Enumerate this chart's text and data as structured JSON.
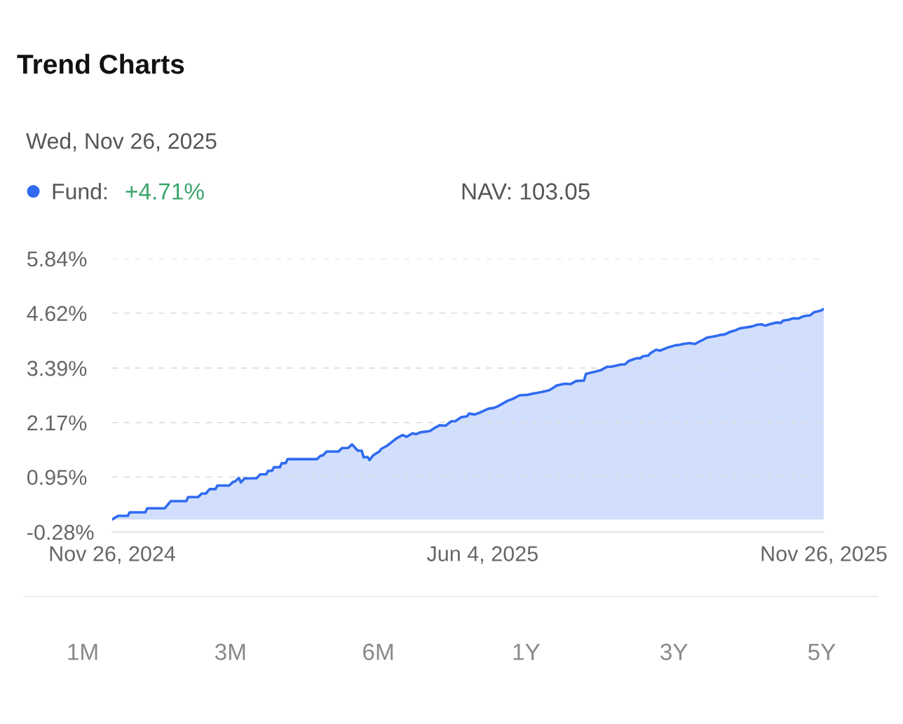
{
  "chart_data": {
    "type": "area",
    "title": "Trend Charts",
    "subtitle": "Wed, Nov 26, 2025",
    "series": [
      {
        "name": "Fund:",
        "color": "#2f6bf0",
        "x": [
          "2024-11-26",
          "2024-11-29",
          "2024-12-04",
          "2024-12-05",
          "2024-12-13",
          "2024-12-14",
          "2024-12-23",
          "2024-12-26",
          "2025-01-03",
          "2025-01-04",
          "2025-01-09",
          "2025-01-11",
          "2025-01-13",
          "2025-01-15",
          "2025-01-18",
          "2025-01-19",
          "2025-01-25",
          "2025-01-27",
          "2025-01-28",
          "2025-01-30",
          "2025-01-31",
          "2025-02-02",
          "2025-02-08",
          "2025-02-10",
          "2025-02-13",
          "2025-02-14",
          "2025-02-16",
          "2025-02-17",
          "2025-02-20",
          "2025-02-21",
          "2025-02-23",
          "2025-02-24",
          "2025-03-11",
          "2025-03-13",
          "2025-03-14",
          "2025-03-16",
          "2025-03-22",
          "2025-03-24",
          "2025-03-27",
          "2025-03-29",
          "2025-04-01",
          "2025-04-03",
          "2025-04-04",
          "2025-04-06",
          "2025-04-07",
          "2025-04-09",
          "2025-04-12",
          "2025-04-13",
          "2025-04-16",
          "2025-04-21",
          "2025-04-24",
          "2025-04-26",
          "2025-04-29",
          "2025-05-01",
          "2025-05-03",
          "2025-05-08",
          "2025-05-10",
          "2025-05-13",
          "2025-05-16",
          "2025-05-19",
          "2025-05-21",
          "2025-05-24",
          "2025-05-27",
          "2025-05-28",
          "2025-05-31",
          "2025-06-03",
          "2025-06-07",
          "2025-06-10",
          "2025-06-12",
          "2025-06-17",
          "2025-06-20",
          "2025-06-23",
          "2025-06-27",
          "2025-06-30",
          "2025-07-04",
          "2025-07-08",
          "2025-07-10",
          "2025-07-12",
          "2025-07-16",
          "2025-07-19",
          "2025-07-22",
          "2025-07-26",
          "2025-07-27",
          "2025-07-31",
          "2025-08-04",
          "2025-08-07",
          "2025-08-09",
          "2025-08-14",
          "2025-08-16",
          "2025-08-18",
          "2025-08-20",
          "2025-08-22",
          "2025-08-24",
          "2025-08-25",
          "2025-08-28",
          "2025-08-29",
          "2025-09-01",
          "2025-09-03",
          "2025-09-07",
          "2025-09-11",
          "2025-09-13",
          "2025-09-15",
          "2025-09-18",
          "2025-09-21",
          "2025-09-23",
          "2025-09-25",
          "2025-09-27",
          "2025-10-02",
          "2025-10-05",
          "2025-10-06",
          "2025-10-09",
          "2025-10-12",
          "2025-10-14",
          "2025-10-20",
          "2025-10-23",
          "2025-10-25",
          "2025-10-27",
          "2025-10-30",
          "2025-11-02",
          "2025-11-04",
          "2025-11-05",
          "2025-11-08",
          "2025-11-10",
          "2025-11-13",
          "2025-11-15",
          "2025-11-17",
          "2025-11-19",
          "2025-11-21",
          "2025-11-24",
          "2025-11-26"
        ],
        "values": [
          0.0,
          0.08,
          0.08,
          0.16,
          0.16,
          0.25,
          0.25,
          0.41,
          0.41,
          0.5,
          0.5,
          0.58,
          0.58,
          0.68,
          0.68,
          0.76,
          0.76,
          0.84,
          0.85,
          0.93,
          0.83,
          0.92,
          0.92,
          1.01,
          1.01,
          1.09,
          1.09,
          1.17,
          1.17,
          1.26,
          1.26,
          1.35,
          1.35,
          1.43,
          1.43,
          1.52,
          1.52,
          1.6,
          1.6,
          1.68,
          1.54,
          1.54,
          1.39,
          1.4,
          1.33,
          1.44,
          1.52,
          1.58,
          1.65,
          1.82,
          1.89,
          1.85,
          1.93,
          1.91,
          1.95,
          1.98,
          2.04,
          2.11,
          2.1,
          2.2,
          2.2,
          2.29,
          2.31,
          2.37,
          2.35,
          2.4,
          2.48,
          2.5,
          2.54,
          2.66,
          2.71,
          2.78,
          2.79,
          2.82,
          2.85,
          2.89,
          2.94,
          3.0,
          3.04,
          3.03,
          3.1,
          3.11,
          3.26,
          3.3,
          3.35,
          3.42,
          3.42,
          3.47,
          3.47,
          3.55,
          3.58,
          3.61,
          3.61,
          3.65,
          3.67,
          3.72,
          3.8,
          3.78,
          3.85,
          3.9,
          3.91,
          3.93,
          3.95,
          3.93,
          3.98,
          4.02,
          4.07,
          4.11,
          4.14,
          4.14,
          4.2,
          4.24,
          4.28,
          4.32,
          4.36,
          4.37,
          4.34,
          4.38,
          4.41,
          4.4,
          4.45,
          4.47,
          4.5,
          4.5,
          4.54,
          4.56,
          4.57,
          4.64,
          4.67,
          4.71
        ]
      }
    ],
    "xlim": [
      "2024-11-26",
      "2025-11-26"
    ],
    "xticks": [
      {
        "value": "2024-11-26",
        "label": "Nov 26, 2024"
      },
      {
        "value": "2025-06-04",
        "label": "Jun 4, 2025"
      },
      {
        "value": "2025-11-26",
        "label": "Nov 26, 2025"
      }
    ],
    "ylim": [
      -0.28,
      5.84
    ],
    "yticks": [
      {
        "value": -0.28,
        "label": "-0.28%"
      },
      {
        "value": 0.95,
        "label": "0.95%"
      },
      {
        "value": 2.17,
        "label": "2.17%"
      },
      {
        "value": 3.39,
        "label": "3.39%"
      },
      {
        "value": 4.62,
        "label": "4.62%"
      },
      {
        "value": 5.84,
        "label": "5.84%"
      }
    ],
    "grid": "y",
    "legend": "top left",
    "annotations": [
      "+4.71%",
      "NAV: 103.05",
      "1M",
      "3M",
      "6M",
      "1Y",
      "3Y",
      "5Y"
    ]
  }
}
